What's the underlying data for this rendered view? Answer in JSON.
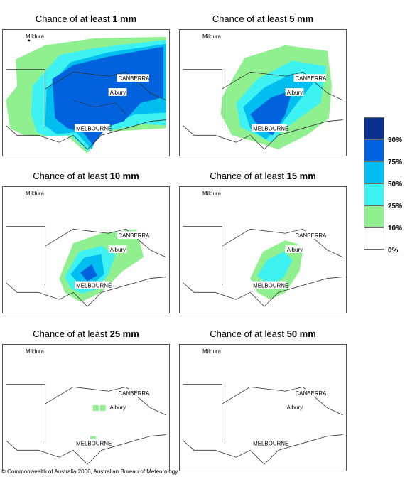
{
  "panels": [
    {
      "prefix": "Chance of at least ",
      "threshold": "1 mm"
    },
    {
      "prefix": "Chance of at least ",
      "threshold": "5 mm"
    },
    {
      "prefix": "Chance of at least ",
      "threshold": "10 mm"
    },
    {
      "prefix": "Chance of at least ",
      "threshold": "15 mm"
    },
    {
      "prefix": "Chance of at least ",
      "threshold": "25 mm"
    },
    {
      "prefix": "Chance of at least ",
      "threshold": "50 mm"
    }
  ],
  "places": {
    "mildura": "Mildura",
    "canberra": "CANBERRA",
    "albury": "Albury",
    "melbourne": "MELBOURNE"
  },
  "legend": {
    "labels": [
      "90%",
      "75%",
      "50%",
      "25%",
      "10%",
      "0%"
    ],
    "colors": [
      "#0a2f8c",
      "#0062dc",
      "#00bff0",
      "#3ef2f2",
      "#90f090",
      "#ffffff"
    ]
  },
  "copyright": "© Commonwealth of Australia 2006, Australian Bureau of Meteorology"
}
